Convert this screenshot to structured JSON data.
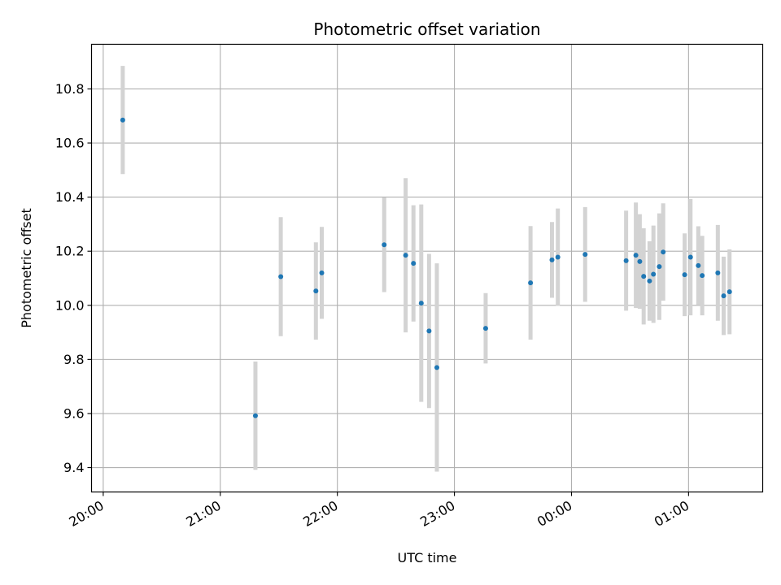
{
  "chart_data": {
    "type": "scatter",
    "title": "Photometric offset variation",
    "xlabel": "UTC time",
    "ylabel": "Photometric offset",
    "x_ticks": [
      "20:00",
      "21:00",
      "22:00",
      "23:00",
      "00:00",
      "01:00"
    ],
    "y_ticks": [
      "9.4",
      "9.6",
      "9.8",
      "10.0",
      "10.2",
      "10.4",
      "10.6",
      "10.8"
    ],
    "xlim": [
      "19:54",
      "01:38"
    ],
    "ylim": [
      9.31,
      10.965
    ],
    "grid": true,
    "colors": {
      "points": "#1f77b4",
      "error_bars": "#d3d3d3",
      "grid": "#b0b0b0"
    },
    "points": [
      {
        "x": "20:10",
        "y": 10.685,
        "err": 0.2
      },
      {
        "x": "21:18",
        "y": 9.592,
        "err": 0.2
      },
      {
        "x": "21:31",
        "y": 10.106,
        "err": 0.22
      },
      {
        "x": "21:49",
        "y": 10.053,
        "err": 0.18
      },
      {
        "x": "21:52",
        "y": 10.12,
        "err": 0.17
      },
      {
        "x": "22:24",
        "y": 10.224,
        "err": 0.175
      },
      {
        "x": "22:35",
        "y": 10.185,
        "err": 0.285
      },
      {
        "x": "22:39",
        "y": 10.155,
        "err": 0.215
      },
      {
        "x": "22:43",
        "y": 10.008,
        "err": 0.365
      },
      {
        "x": "22:47",
        "y": 9.905,
        "err": 0.285
      },
      {
        "x": "22:51",
        "y": 9.77,
        "err": 0.385
      },
      {
        "x": "23:16",
        "y": 9.915,
        "err": 0.13
      },
      {
        "x": "23:39",
        "y": 10.083,
        "err": 0.21
      },
      {
        "x": "23:50",
        "y": 10.168,
        "err": 0.14
      },
      {
        "x": "23:53",
        "y": 10.178,
        "err": 0.18
      },
      {
        "x": "00:07",
        "y": 10.188,
        "err": 0.175
      },
      {
        "x": "00:28",
        "y": 10.165,
        "err": 0.185
      },
      {
        "x": "00:33",
        "y": 10.185,
        "err": 0.195
      },
      {
        "x": "00:35",
        "y": 10.162,
        "err": 0.175
      },
      {
        "x": "00:37",
        "y": 10.107,
        "err": 0.178
      },
      {
        "x": "00:40",
        "y": 10.09,
        "err": 0.147
      },
      {
        "x": "00:42",
        "y": 10.115,
        "err": 0.18
      },
      {
        "x": "00:45",
        "y": 10.143,
        "err": 0.197
      },
      {
        "x": "00:47",
        "y": 10.197,
        "err": 0.18
      },
      {
        "x": "00:58",
        "y": 10.113,
        "err": 0.153
      },
      {
        "x": "01:01",
        "y": 10.178,
        "err": 0.215
      },
      {
        "x": "01:05",
        "y": 10.147,
        "err": 0.145
      },
      {
        "x": "01:07",
        "y": 10.11,
        "err": 0.147
      },
      {
        "x": "01:15",
        "y": 10.12,
        "err": 0.177
      },
      {
        "x": "01:18",
        "y": 10.035,
        "err": 0.145
      },
      {
        "x": "01:21",
        "y": 10.05,
        "err": 0.157
      }
    ]
  }
}
